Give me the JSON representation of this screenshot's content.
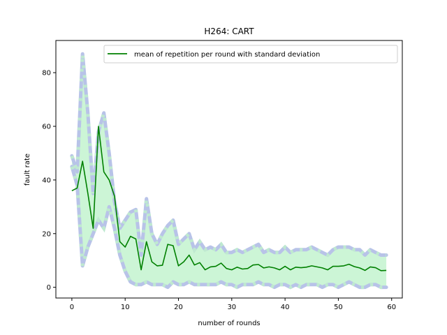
{
  "chart_data": {
    "type": "line",
    "title": "H264: CART",
    "xlabel": "number of rounds",
    "ylabel": "fault rate",
    "xlim": [
      -3,
      62
    ],
    "ylim": [
      -4,
      92
    ],
    "xticks": [
      0,
      10,
      20,
      30,
      40,
      50,
      60
    ],
    "yticks": [
      0,
      20,
      40,
      60,
      80
    ],
    "grid": false,
    "legend_position": "top-right",
    "colors": {
      "mean": "#008000",
      "band_fill": "#ccf5d6",
      "std_line_light": "#b8c3e8",
      "std_line_dash": "#bfe9d0"
    },
    "x": [
      0,
      1,
      2,
      3,
      4,
      5,
      6,
      7,
      8,
      9,
      10,
      11,
      12,
      13,
      14,
      15,
      16,
      17,
      18,
      19,
      20,
      21,
      22,
      23,
      24,
      25,
      26,
      27,
      28,
      29,
      30,
      31,
      32,
      33,
      34,
      35,
      36,
      37,
      38,
      39,
      40,
      41,
      42,
      43,
      44,
      45,
      46,
      47,
      48,
      49,
      50,
      51,
      52,
      53,
      54,
      55,
      56,
      57,
      58,
      59
    ],
    "series": [
      {
        "name": "mean of repetition per round with standard deviation",
        "values": [
          36,
          37,
          47,
          35,
          22,
          60,
          43,
          40,
          34,
          17,
          15,
          19,
          18,
          6.5,
          17,
          9.5,
          8,
          8.2,
          16,
          15.5,
          8,
          9.5,
          12,
          8.3,
          9.2,
          6.5,
          7.6,
          7.8,
          9,
          7,
          6.5,
          7.5,
          6.8,
          7,
          8.3,
          8.5,
          7.2,
          7.6,
          7.2,
          6.5,
          7.8,
          6.5,
          7.5,
          7.3,
          7.5,
          8,
          7.6,
          7.2,
          6.5,
          7.8,
          7.8,
          8,
          8.6,
          7.7,
          7.2,
          6.3,
          7.6,
          7.3,
          6.2,
          6.3
        ],
        "upper": [
          49,
          43,
          87,
          65,
          35,
          58,
          65,
          50,
          32,
          22,
          25,
          28,
          29,
          12,
          33,
          20,
          16,
          20,
          23,
          25,
          16,
          18,
          20,
          14,
          17,
          14,
          15,
          14,
          16,
          13,
          13,
          14,
          13,
          14,
          15,
          16,
          13,
          14,
          13,
          13,
          15,
          13,
          14,
          14,
          14,
          15,
          14,
          13,
          12,
          14,
          15,
          15,
          15,
          14,
          14,
          12,
          14,
          13,
          12,
          12
        ],
        "lower": [
          45,
          38,
          8,
          15,
          20,
          25,
          22,
          30,
          22,
          12,
          6,
          2,
          1,
          1,
          2,
          1,
          1,
          1,
          0,
          2,
          1,
          1,
          2,
          1,
          1,
          1,
          1,
          1,
          2,
          1,
          1,
          0,
          1,
          1,
          1,
          2,
          1,
          1,
          0,
          1,
          1,
          0,
          1,
          0,
          1,
          1,
          1,
          0,
          1,
          1,
          0,
          1,
          2,
          1,
          0,
          0,
          1,
          1,
          0,
          0
        ]
      }
    ]
  }
}
